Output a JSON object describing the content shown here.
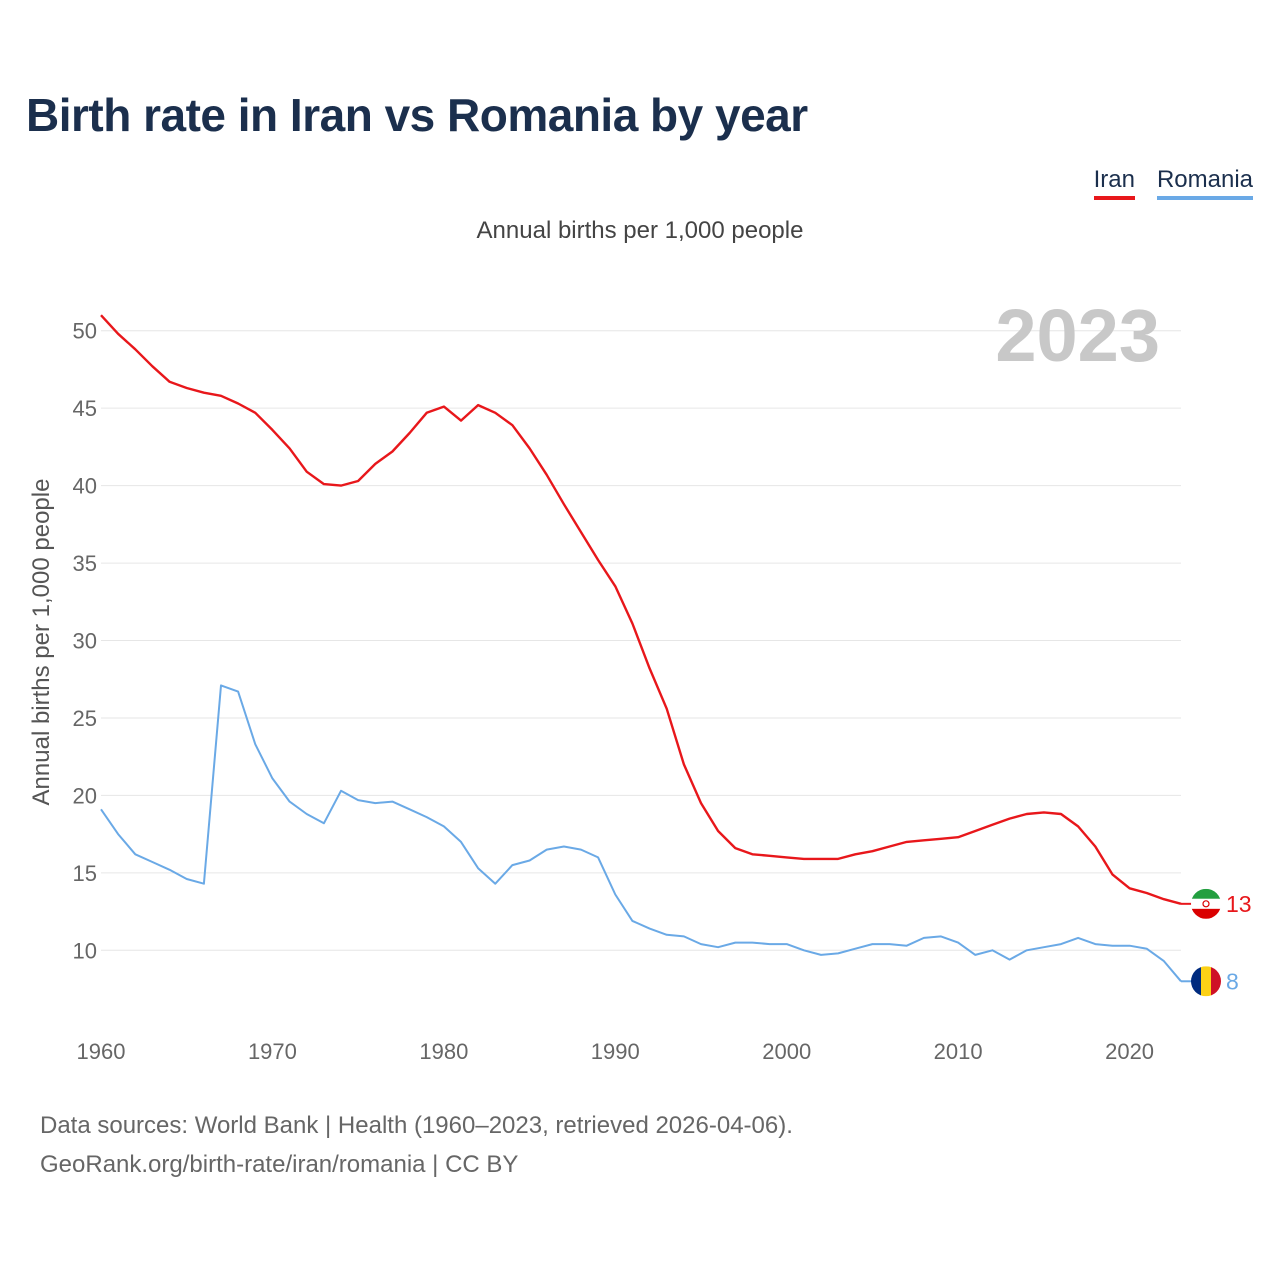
{
  "title": "Birth rate in Iran vs Romania by year",
  "subtitle": "Annual births per 1,000 people",
  "legend": {
    "iran": "Iran",
    "romania": "Romania"
  },
  "colors": {
    "iran": "#e8171b",
    "romania": "#6aa9e6",
    "title": "#1b2f4d",
    "year_label": "#c8c8c8"
  },
  "chart_data": {
    "type": "line",
    "title": "Birth rate in Iran vs Romania by year",
    "subtitle": "Annual births per 1,000 people",
    "xlabel": "",
    "ylabel": "Annual births per 1,000 people",
    "xlim": [
      1960,
      2023
    ],
    "ylim": [
      5.5,
      52.5
    ],
    "x_ticks": [
      1960,
      1970,
      1980,
      1990,
      2000,
      2010,
      2020
    ],
    "y_ticks": [
      10,
      15,
      20,
      25,
      30,
      35,
      40,
      45,
      50
    ],
    "year_label": "2023",
    "x": [
      1960,
      1961,
      1962,
      1963,
      1964,
      1965,
      1966,
      1967,
      1968,
      1969,
      1970,
      1971,
      1972,
      1973,
      1974,
      1975,
      1976,
      1977,
      1978,
      1979,
      1980,
      1981,
      1982,
      1983,
      1984,
      1985,
      1986,
      1987,
      1988,
      1989,
      1990,
      1991,
      1992,
      1993,
      1994,
      1995,
      1996,
      1997,
      1998,
      1999,
      2000,
      2001,
      2002,
      2003,
      2004,
      2005,
      2006,
      2007,
      2008,
      2009,
      2010,
      2011,
      2012,
      2013,
      2014,
      2015,
      2016,
      2017,
      2018,
      2019,
      2020,
      2021,
      2022,
      2023
    ],
    "series": [
      {
        "name": "Iran",
        "end_label": "13",
        "values": [
          51.0,
          49.8,
          48.8,
          47.7,
          46.7,
          46.3,
          46.0,
          45.8,
          45.3,
          44.7,
          43.6,
          42.4,
          40.9,
          40.1,
          40.0,
          40.3,
          41.4,
          42.2,
          43.4,
          44.7,
          45.1,
          44.2,
          45.2,
          44.7,
          43.9,
          42.4,
          40.7,
          38.8,
          37.0,
          35.2,
          33.5,
          31.1,
          28.2,
          25.6,
          22.0,
          19.5,
          17.7,
          16.6,
          16.2,
          16.1,
          16.0,
          15.9,
          15.9,
          15.9,
          16.2,
          16.4,
          16.7,
          17.0,
          17.1,
          17.2,
          17.3,
          17.7,
          18.1,
          18.5,
          18.8,
          18.9,
          18.8,
          18.0,
          16.7,
          14.9,
          14.0,
          13.7,
          13.3,
          13.0
        ]
      },
      {
        "name": "Romania",
        "end_label": "8",
        "values": [
          19.1,
          17.5,
          16.2,
          15.7,
          15.2,
          14.6,
          14.3,
          27.1,
          26.7,
          23.3,
          21.1,
          19.6,
          18.8,
          18.2,
          20.3,
          19.7,
          19.5,
          19.6,
          19.1,
          18.6,
          18.0,
          17.0,
          15.3,
          14.3,
          15.5,
          15.8,
          16.5,
          16.7,
          16.5,
          16.0,
          13.6,
          11.9,
          11.4,
          11.0,
          10.9,
          10.4,
          10.2,
          10.5,
          10.5,
          10.4,
          10.4,
          10.0,
          9.7,
          9.8,
          10.1,
          10.4,
          10.4,
          10.3,
          10.8,
          10.9,
          10.5,
          9.7,
          10.0,
          9.4,
          10.0,
          10.2,
          10.4,
          10.8,
          10.4,
          10.3,
          10.3,
          10.1,
          9.3,
          8.0
        ]
      }
    ]
  },
  "footer": {
    "line1": "Data sources: World Bank | Health (1960–2023, retrieved 2026-04-06).",
    "line2": "GeoRank.org/birth-rate/iran/romania | CC BY"
  }
}
